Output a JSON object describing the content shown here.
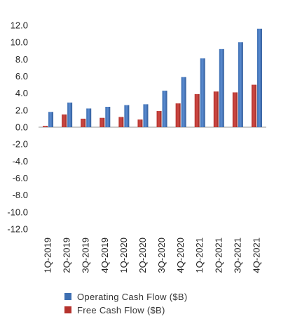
{
  "chart_data": {
    "type": "bar",
    "title": "",
    "xlabel": "",
    "ylabel": "",
    "ylim": [
      -12.0,
      12.0
    ],
    "ytick_step": 2.0,
    "ytick_decimals": 1,
    "grid": false,
    "legend_position": "bottom",
    "categories": [
      "1Q-2019",
      "2Q-2019",
      "3Q-2019",
      "4Q-2019",
      "1Q-2020",
      "2Q-2020",
      "3Q-2020",
      "4Q-2020",
      "1Q-2021",
      "2Q-2021",
      "3Q-2021",
      "4Q-2021"
    ],
    "series": [
      {
        "name": "Operating Cash Flow ($B)",
        "color": "#3e6fb2",
        "values": [
          1.8,
          2.9,
          2.2,
          2.4,
          2.6,
          2.7,
          4.3,
          5.9,
          8.1,
          9.2,
          10.0,
          11.6
        ]
      },
      {
        "name": "Free Cash Flow ($B)",
        "color": "#b5322d",
        "values": [
          0.15,
          1.5,
          1.0,
          1.1,
          1.2,
          0.9,
          1.9,
          2.8,
          3.9,
          4.2,
          4.1,
          5.0
        ]
      }
    ]
  }
}
